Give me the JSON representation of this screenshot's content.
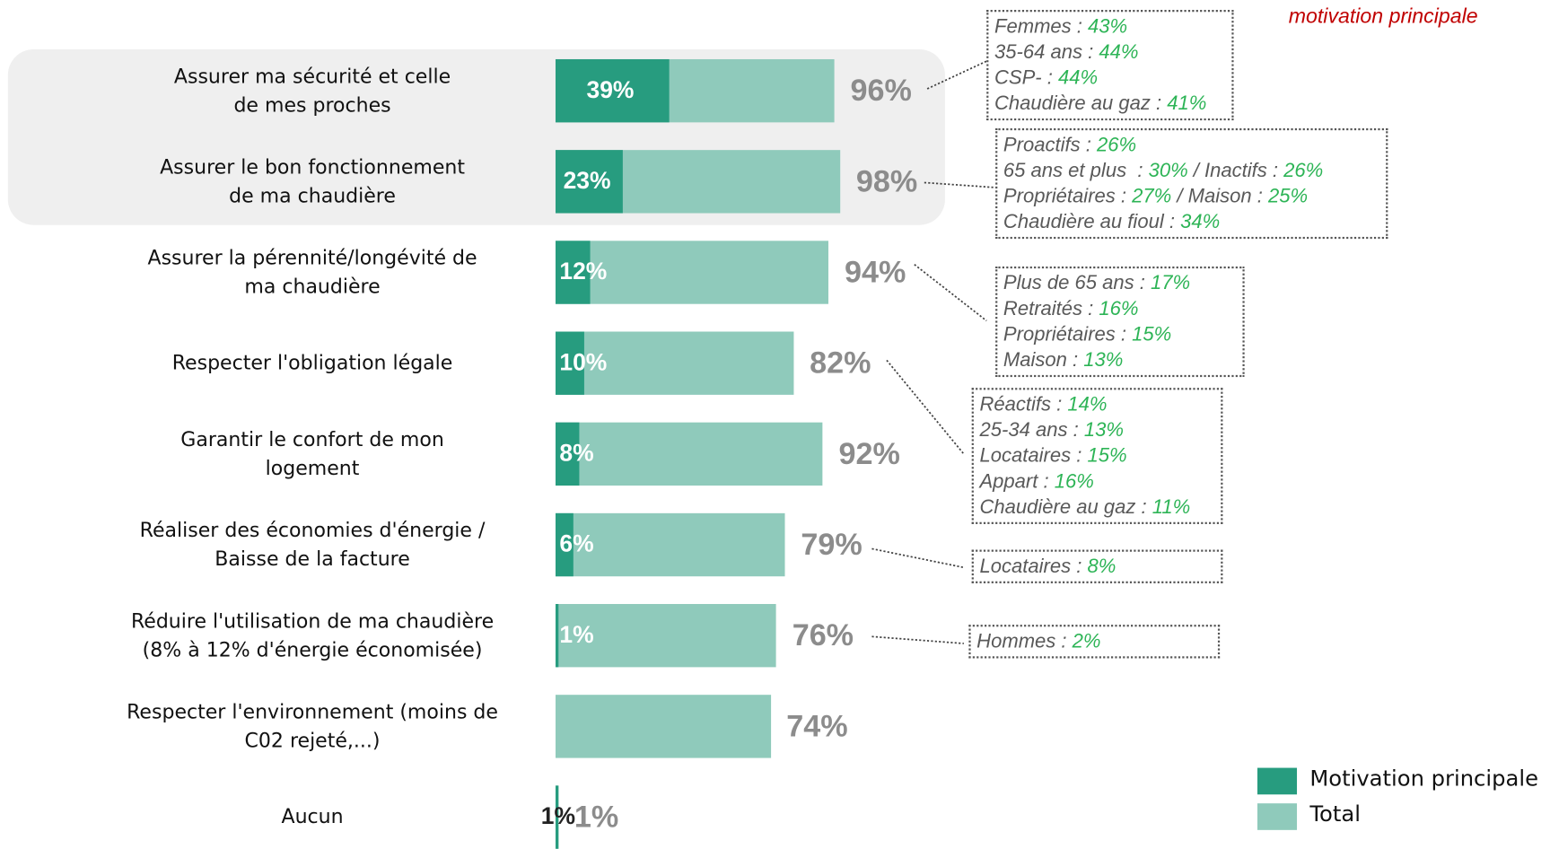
{
  "chart_data": {
    "type": "bar",
    "orientation": "horizontal",
    "categories": [
      "Assurer ma sécurité et celle\nde mes proches",
      "Assurer le bon fonctionnement\nde ma chaudière",
      "Assurer la pérennité/longévité de\nma chaudière",
      "Respecter l'obligation légale",
      "Garantir le confort de mon\nlogement",
      "Réaliser des économies d'énergie /\nBaisse de la facture",
      "Réduire l'utilisation de ma chaudière\n(8% à 12% d'énergie économisée)",
      "Respecter l'environnement (moins de\nC02 rejeté,...)",
      "Aucun"
    ],
    "series": [
      {
        "name": "Motivation principale",
        "color": "#279c7f",
        "values": [
          39,
          23,
          12,
          10,
          8,
          6,
          1,
          null,
          1
        ],
        "value_labels": [
          "39%",
          "23%",
          "12%",
          "10%",
          "8%",
          "6%",
          "1%",
          null,
          "1%"
        ]
      },
      {
        "name": "Total",
        "color": "#8fcabb",
        "values": [
          96,
          98,
          94,
          82,
          92,
          79,
          76,
          74,
          1
        ],
        "value_labels": [
          "96%",
          "98%",
          "94%",
          "82%",
          "92%",
          "79%",
          "76%",
          "74%",
          "1%"
        ]
      }
    ],
    "xlim": [
      0,
      100
    ],
    "annotation_title": "motivation principale",
    "annotations": [
      {
        "category": 0,
        "lines": [
          [
            "Femmes : ",
            "43%"
          ],
          [
            "35-64 ans : ",
            "44%"
          ],
          [
            "CSP- : ",
            "44%"
          ],
          [
            "Chaudière au gaz : ",
            "41%"
          ]
        ]
      },
      {
        "category": 1,
        "lines": [
          [
            "Proactifs : ",
            "26%"
          ],
          [
            "65 ans et plus  : ",
            "30%",
            " / Inactifs : ",
            "26%"
          ],
          [
            "Propriétaires : ",
            "27%",
            " / Maison : ",
            "25%"
          ],
          [
            "Chaudière au fioul : ",
            "34%"
          ]
        ]
      },
      {
        "category": 2,
        "lines": [
          [
            "Plus de 65 ans : ",
            "17%"
          ],
          [
            "Retraités : ",
            "16%"
          ],
          [
            "Propriétaires : ",
            "15%"
          ],
          [
            "Maison : ",
            "13%"
          ]
        ]
      },
      {
        "category": 3,
        "lines": [
          [
            "Réactifs : ",
            "14%"
          ],
          [
            "25-34 ans : ",
            "13%"
          ],
          [
            "Locataires : ",
            "15%"
          ],
          [
            "Appart : ",
            "16%"
          ],
          [
            "Chaudière au gaz : ",
            "11%"
          ]
        ]
      },
      {
        "category": 5,
        "lines": [
          [
            "Locataires : ",
            "8%"
          ]
        ]
      },
      {
        "category": 6,
        "lines": [
          [
            "Hommes : ",
            "2%"
          ]
        ]
      }
    ]
  }
}
